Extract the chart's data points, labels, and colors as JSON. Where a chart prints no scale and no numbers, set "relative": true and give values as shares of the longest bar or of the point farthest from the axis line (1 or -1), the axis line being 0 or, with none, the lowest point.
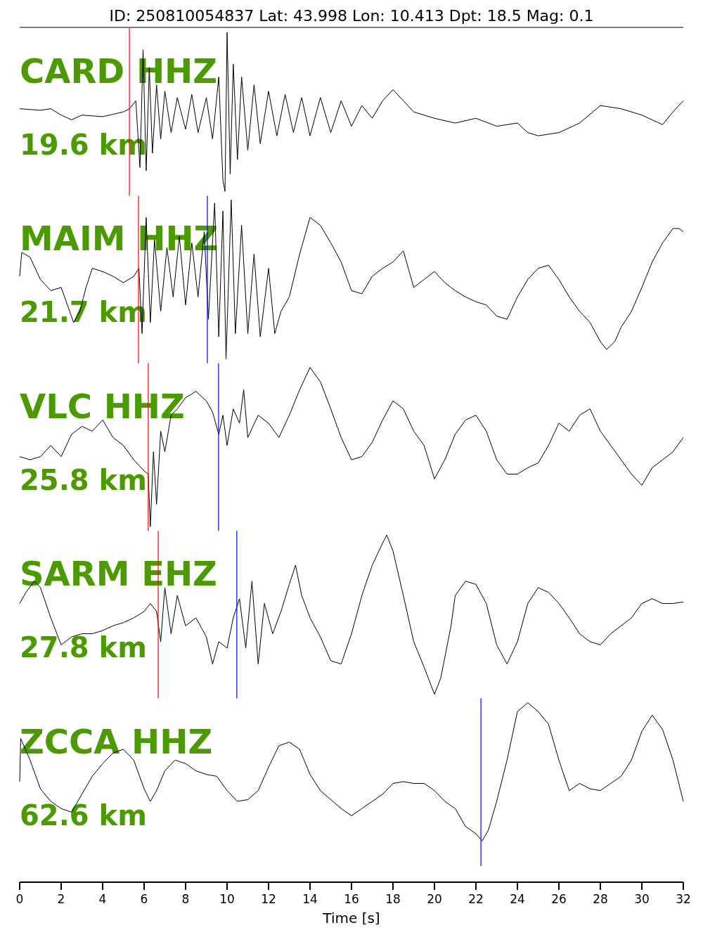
{
  "chart_data": [
    {
      "type": "line",
      "title": "ID: 250810054837 Lat:  43.998 Lon:  10.413 Dpt:    18.5 Mag:   0.1",
      "annotations": [
        "CARD HHZ",
        "19.6 km"
      ],
      "relative": true,
      "xlim": [
        0,
        32
      ],
      "tick_labels": false,
      "series": [
        {
          "color": "#000000",
          "x": [
            0,
            1,
            1.5,
            2,
            2.5,
            3,
            4,
            5,
            5.3,
            5.6,
            5.8,
            5.95,
            6.1,
            6.25,
            6.4,
            6.6,
            6.8,
            7,
            7.3,
            7.6,
            8,
            8.3,
            8.6,
            9,
            9.3,
            9.6,
            9.8,
            9.9,
            10,
            10.15,
            10.3,
            10.5,
            10.7,
            11,
            11.3,
            11.6,
            12,
            12.4,
            12.8,
            13.2,
            13.6,
            14,
            14.5,
            15,
            15.5,
            16,
            16.5,
            17,
            17.5,
            18,
            18.5,
            19,
            20,
            21,
            22,
            23,
            24,
            24.5,
            25,
            26,
            27,
            28,
            29,
            30,
            31,
            31.5,
            32
          ],
          "values": [
            0.52,
            0.51,
            0.52,
            0.48,
            0.45,
            0.48,
            0.47,
            0.5,
            0.52,
            0.57,
            0.15,
            0.89,
            0.13,
            0.78,
            0.24,
            0.67,
            0.33,
            0.63,
            0.37,
            0.59,
            0.39,
            0.61,
            0.37,
            0.59,
            0.33,
            0.72,
            0.07,
            0,
            1,
            0.11,
            0.8,
            0.2,
            0.72,
            0.26,
            0.67,
            0.3,
            0.63,
            0.35,
            0.61,
            0.37,
            0.59,
            0.35,
            0.59,
            0.37,
            0.57,
            0.41,
            0.54,
            0.46,
            0.57,
            0.64,
            0.57,
            0.5,
            0.46,
            0.43,
            0.46,
            0.41,
            0.43,
            0.37,
            0.35,
            0.37,
            0.43,
            0.54,
            0.52,
            0.48,
            0.42,
            0.5,
            0.57
          ]
        }
      ],
      "ref_lines": [
        {
          "axis": "x",
          "value": 5.29,
          "color": "#ff0000"
        }
      ]
    },
    {
      "type": "line",
      "annotations": [
        "MAIM HHZ",
        "21.7 km"
      ],
      "relative": true,
      "xlim": [
        0,
        32
      ],
      "tick_labels": false,
      "series": [
        {
          "color": "#000000",
          "x": [
            0,
            0.1,
            0.5,
            1,
            1.5,
            2,
            2.3,
            2.6,
            2.9,
            3.2,
            3.5,
            4,
            4.5,
            5,
            5.5,
            5.75,
            5.9,
            6.1,
            6.3,
            6.5,
            6.8,
            7.1,
            7.4,
            7.7,
            8,
            8.3,
            8.6,
            8.9,
            9.1,
            9.4,
            9.6,
            9.8,
            9.95,
            10.2,
            10.4,
            10.7,
            11,
            11.3,
            11.6,
            12,
            12.3,
            12.6,
            13,
            13.5,
            14,
            14.5,
            15,
            15.5,
            16,
            16.5,
            17,
            17.5,
            18,
            18.5,
            19,
            19.5,
            20,
            20.5,
            21,
            21.5,
            22,
            22.5,
            23,
            23.5,
            24,
            24.5,
            25,
            25.5,
            26,
            26.5,
            27,
            27.5,
            28,
            28.3,
            28.7,
            29,
            29.5,
            30,
            30.5,
            31,
            31.5,
            31.8,
            32
          ],
          "values": [
            0.52,
            0.67,
            0.64,
            0.5,
            0.43,
            0.45,
            0.34,
            0.23,
            0.3,
            0.45,
            0.57,
            0.55,
            0.52,
            0.48,
            0.52,
            0.57,
            0.16,
            0.89,
            0.23,
            0.75,
            0.3,
            0.7,
            0.39,
            0.77,
            0.34,
            0.73,
            0.39,
            0.8,
            0.25,
            0.98,
            0.14,
            0.93,
            0,
            1,
            0.16,
            0.84,
            0.16,
            0.66,
            0.14,
            0.57,
            0.16,
            0.3,
            0.39,
            0.66,
            0.89,
            0.84,
            0.73,
            0.61,
            0.43,
            0.41,
            0.52,
            0.57,
            0.61,
            0.68,
            0.45,
            0.5,
            0.55,
            0.48,
            0.43,
            0.39,
            0.36,
            0.34,
            0.27,
            0.25,
            0.39,
            0.5,
            0.57,
            0.59,
            0.5,
            0.39,
            0.3,
            0.23,
            0.11,
            0.06,
            0.11,
            0.2,
            0.3,
            0.45,
            0.61,
            0.73,
            0.82,
            0.82,
            0.8
          ]
        }
      ],
      "ref_lines": [
        {
          "axis": "x",
          "value": 5.73,
          "color": "#ff0000"
        },
        {
          "axis": "x",
          "value": 9.05,
          "color": "#0000ff"
        }
      ]
    },
    {
      "type": "line",
      "annotations": [
        "VLC HHZ",
        "25.8 km"
      ],
      "relative": true,
      "xlim": [
        0,
        32
      ],
      "tick_labels": false,
      "series": [
        {
          "color": "#000000",
          "x": [
            0,
            0.5,
            1,
            1.5,
            2,
            2.5,
            3,
            3.5,
            4,
            4.5,
            5,
            5.5,
            6,
            6.2,
            6.3,
            6.45,
            6.6,
            6.8,
            7,
            7.3,
            7.6,
            8,
            8.5,
            9,
            9.3,
            9.6,
            9.8,
            10,
            10.3,
            10.6,
            10.8,
            11,
            11.5,
            12,
            12.5,
            13,
            13.5,
            14,
            14.5,
            15,
            15.5,
            16,
            16.5,
            17,
            17.5,
            18,
            18.5,
            19,
            19.5,
            20,
            20.5,
            21,
            21.5,
            22,
            22.5,
            23,
            23.5,
            24,
            24.5,
            25,
            25.5,
            26,
            26.5,
            27,
            27.5,
            28,
            28.5,
            29,
            29.5,
            30,
            30.5,
            31,
            31.5,
            32
          ],
          "values": [
            0.44,
            0.42,
            0.44,
            0.51,
            0.44,
            0.58,
            0.63,
            0.6,
            0.67,
            0.56,
            0.51,
            0.42,
            0.35,
            0.33,
            0,
            0.47,
            0.14,
            0.6,
            0.47,
            0.7,
            0.74,
            0.81,
            0.85,
            0.79,
            0.72,
            0.58,
            0.7,
            0.51,
            0.74,
            0.65,
            0.86,
            0.56,
            0.7,
            0.65,
            0.56,
            0.7,
            0.86,
            1,
            0.91,
            0.74,
            0.56,
            0.42,
            0.44,
            0.53,
            0.67,
            0.79,
            0.74,
            0.6,
            0.51,
            0.3,
            0.42,
            0.58,
            0.67,
            0.7,
            0.6,
            0.42,
            0.33,
            0.33,
            0.37,
            0.4,
            0.51,
            0.65,
            0.6,
            0.7,
            0.74,
            0.6,
            0.51,
            0.42,
            0.33,
            0.26,
            0.37,
            0.42,
            0.47,
            0.56
          ]
        }
      ],
      "ref_lines": [
        {
          "axis": "x",
          "value": 6.2,
          "color": "#ff0000"
        },
        {
          "axis": "x",
          "value": 9.59,
          "color": "#0000ff"
        }
      ]
    },
    {
      "type": "line",
      "annotations": [
        "SARM EHZ",
        "27.8 km"
      ],
      "relative": true,
      "xlim": [
        0,
        32
      ],
      "tick_labels": false,
      "series": [
        {
          "color": "#000000",
          "x": [
            0,
            0.3,
            0.7,
            1,
            1.5,
            2,
            2.5,
            3,
            3.5,
            4,
            4.5,
            5,
            5.5,
            6,
            6.3,
            6.6,
            6.8,
            7,
            7.3,
            7.6,
            8,
            8.5,
            9,
            9.3,
            9.6,
            10,
            10.3,
            10.6,
            10.9,
            11.2,
            11.5,
            11.8,
            12.2,
            12.6,
            13,
            13.3,
            13.6,
            14,
            14.5,
            15,
            15.5,
            16,
            16.5,
            17,
            17.5,
            17.7,
            18,
            18.5,
            19,
            19.5,
            20,
            20.3,
            20.8,
            21,
            21.5,
            22,
            22.5,
            23,
            23.5,
            24,
            24.5,
            25,
            25.5,
            26,
            26.5,
            27,
            27.5,
            28,
            28.5,
            29,
            29.5,
            30,
            30.5,
            31,
            31.5,
            32
          ],
          "values": [
            0.57,
            0.64,
            0.71,
            0.67,
            0.48,
            0.31,
            0.36,
            0.38,
            0.38,
            0.4,
            0.43,
            0.45,
            0.48,
            0.52,
            0.57,
            0.52,
            0.33,
            0.67,
            0.38,
            0.62,
            0.43,
            0.48,
            0.36,
            0.19,
            0.33,
            0.29,
            0.48,
            0.6,
            0.29,
            0.71,
            0.19,
            0.57,
            0.38,
            0.52,
            0.69,
            0.81,
            0.62,
            0.48,
            0.36,
            0.21,
            0.19,
            0.38,
            0.62,
            0.81,
            0.95,
            1,
            0.9,
            0.62,
            0.33,
            0.17,
            0,
            0.1,
            0.43,
            0.62,
            0.71,
            0.69,
            0.57,
            0.31,
            0.19,
            0.33,
            0.57,
            0.67,
            0.64,
            0.57,
            0.48,
            0.38,
            0.33,
            0.31,
            0.38,
            0.43,
            0.48,
            0.57,
            0.6,
            0.57,
            0.57,
            0.58
          ]
        }
      ],
      "ref_lines": [
        {
          "axis": "x",
          "value": 6.68,
          "color": "#ff0000"
        },
        {
          "axis": "x",
          "value": 10.47,
          "color": "#0000ff"
        }
      ]
    },
    {
      "type": "line",
      "xlabel": "Time [s]",
      "annotations": [
        "ZCCA HHZ",
        "62.6 km"
      ],
      "relative": true,
      "xlim": [
        0,
        32
      ],
      "tick_labels": "x",
      "xticks": [
        0,
        2,
        4,
        6,
        8,
        10,
        12,
        14,
        16,
        18,
        20,
        22,
        24,
        26,
        28,
        30,
        32
      ],
      "series": [
        {
          "color": "#000000",
          "x": [
            0,
            0.05,
            0.5,
            1,
            1.5,
            2,
            2.5,
            3,
            3.5,
            4,
            4.5,
            5,
            5.5,
            6,
            6.3,
            6.6,
            7,
            7.5,
            8,
            8.5,
            9,
            9.5,
            10,
            10.5,
            11,
            11.5,
            12,
            12.5,
            13,
            13.5,
            14,
            14.5,
            15,
            15.5,
            16,
            16.5,
            17,
            17.5,
            18,
            18.5,
            19,
            19.5,
            20,
            20.5,
            21,
            21.5,
            22,
            22.3,
            22.6,
            23,
            23.5,
            24,
            24.5,
            25,
            25.5,
            26,
            26.5,
            27,
            27.5,
            28,
            28.5,
            29,
            29.5,
            30,
            30.5,
            31,
            31.5,
            32
          ],
          "values": [
            0.56,
            0.8,
            0.68,
            0.52,
            0.45,
            0.41,
            0.39,
            0.49,
            0.59,
            0.66,
            0.72,
            0.74,
            0.68,
            0.52,
            0.45,
            0.51,
            0.62,
            0.68,
            0.66,
            0.62,
            0.6,
            0.59,
            0.51,
            0.45,
            0.46,
            0.51,
            0.64,
            0.76,
            0.78,
            0.74,
            0.6,
            0.51,
            0.46,
            0.41,
            0.37,
            0.41,
            0.45,
            0.49,
            0.55,
            0.56,
            0.55,
            0.55,
            0.51,
            0.45,
            0.41,
            0.31,
            0.27,
            0.23,
            0.29,
            0.45,
            0.68,
            0.95,
            1,
            0.95,
            0.88,
            0.68,
            0.51,
            0.55,
            0.52,
            0.51,
            0.55,
            0.59,
            0.68,
            0.84,
            0.93,
            0.85,
            0.68,
            0.45
          ]
        }
      ],
      "ref_lines": [
        {
          "axis": "x",
          "value": 22.24,
          "color": "#0000ff"
        }
      ]
    }
  ]
}
